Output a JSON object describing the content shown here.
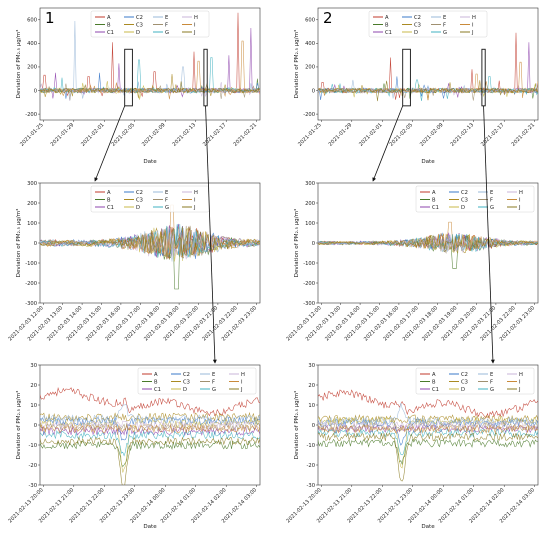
{
  "series_styles": [
    {
      "name": "A",
      "color": "#c0392b"
    },
    {
      "name": "B",
      "color": "#4a7a2a"
    },
    {
      "name": "C1",
      "color": "#8e44ad"
    },
    {
      "name": "C2",
      "color": "#3a78c9"
    },
    {
      "name": "C3",
      "color": "#aa8a22"
    },
    {
      "name": "D",
      "color": "#c8b84a"
    },
    {
      "name": "E",
      "color": "#9ab8d8"
    },
    {
      "name": "F",
      "color": "#a09070"
    },
    {
      "name": "G",
      "color": "#3fb0c0"
    },
    {
      "name": "H",
      "color": "#c9b4d8"
    },
    {
      "name": "I",
      "color": "#c98a3a"
    },
    {
      "name": "J",
      "color": "#8a7a20"
    }
  ],
  "chart_data": [
    {
      "id": "p1-top",
      "type": "line",
      "panel_label": "1",
      "xlabel": "Date",
      "ylabel": "Deviation of PM₂.₅ μg/m³",
      "ylim": [
        -250,
        700
      ],
      "yticks": [
        -200,
        0,
        200,
        400,
        600
      ],
      "xticks": [
        "2021-01-25",
        "2021-01-29",
        "2021-02-01",
        "2021-02-05",
        "2021-02-09",
        "2021-02-13",
        "2021-02-17",
        "2021-02-21"
      ],
      "legend": "top-center",
      "spikes": [
        {
          "s": "A",
          "x": 0.02,
          "y": 130
        },
        {
          "s": "C1",
          "x": 0.07,
          "y": 150
        },
        {
          "s": "G",
          "x": 0.1,
          "y": 110
        },
        {
          "s": "E",
          "x": 0.16,
          "y": 590
        },
        {
          "s": "A",
          "x": 0.22,
          "y": 120
        },
        {
          "s": "C2",
          "x": 0.27,
          "y": 150
        },
        {
          "s": "A",
          "x": 0.33,
          "y": 410
        },
        {
          "s": "C1",
          "x": 0.36,
          "y": 230
        },
        {
          "s": "G",
          "x": 0.45,
          "y": 260
        },
        {
          "s": "A",
          "x": 0.52,
          "y": 160
        },
        {
          "s": "C3",
          "x": 0.6,
          "y": 140
        },
        {
          "s": "E",
          "x": 0.65,
          "y": 200
        },
        {
          "s": "A",
          "x": 0.7,
          "y": 330
        },
        {
          "s": "I",
          "x": 0.72,
          "y": 250
        },
        {
          "s": "G",
          "x": 0.78,
          "y": 280
        },
        {
          "s": "C1",
          "x": 0.86,
          "y": 300
        },
        {
          "s": "A",
          "x": 0.9,
          "y": 660
        },
        {
          "s": "I",
          "x": 0.92,
          "y": 420
        },
        {
          "s": "C1",
          "x": 0.96,
          "y": 530
        },
        {
          "s": "B",
          "x": 0.99,
          "y": 100
        }
      ],
      "boxes": [
        [
          0.385,
          0.42
        ],
        [
          0.745,
          0.76
        ]
      ]
    },
    {
      "id": "p2-top",
      "type": "line",
      "panel_label": "2",
      "xlabel": "Date",
      "ylabel": "Deviation of PM₂.₅ μg/m³",
      "ylim": [
        -250,
        700
      ],
      "yticks": [
        -200,
        0,
        200,
        400,
        600
      ],
      "xticks": [
        "2021-01-25",
        "2021-01-29",
        "2021-02-01",
        "2021-02-05",
        "2021-02-09",
        "2021-02-13",
        "2021-02-17",
        "2021-02-21"
      ],
      "legend": "top-center",
      "spikes": [
        {
          "s": "A",
          "x": 0.02,
          "y": 70
        },
        {
          "s": "G",
          "x": 0.1,
          "y": 60
        },
        {
          "s": "E",
          "x": 0.16,
          "y": 90
        },
        {
          "s": "A",
          "x": 0.33,
          "y": 280
        },
        {
          "s": "C2",
          "x": 0.36,
          "y": 120
        },
        {
          "s": "G",
          "x": 0.45,
          "y": 90
        },
        {
          "s": "C3",
          "x": 0.6,
          "y": 70
        },
        {
          "s": "A",
          "x": 0.7,
          "y": 180
        },
        {
          "s": "I",
          "x": 0.72,
          "y": 140
        },
        {
          "s": "G",
          "x": 0.78,
          "y": 120
        },
        {
          "s": "A",
          "x": 0.9,
          "y": 490
        },
        {
          "s": "I",
          "x": 0.92,
          "y": 240
        },
        {
          "s": "C1",
          "x": 0.96,
          "y": 410
        },
        {
          "s": "B",
          "x": 0.99,
          "y": 60
        }
      ],
      "boxes": [
        [
          0.385,
          0.42
        ],
        [
          0.745,
          0.76
        ]
      ]
    },
    {
      "id": "p1-mid",
      "type": "line",
      "xlabel": "",
      "ylabel": "Deviation of PM₂.₅ μg/m³",
      "ylim": [
        -300,
        300
      ],
      "yticks": [
        -300,
        -200,
        -100,
        0,
        100,
        200,
        300
      ],
      "xticks": [
        "2021-02-03 12:00",
        "2021-02-03 13:00",
        "2021-02-03 14:00",
        "2021-02-03 15:00",
        "2021-02-03 16:00",
        "2021-02-03 17:00",
        "2021-02-03 18:00",
        "2021-02-03 19:00",
        "2021-02-03 20:00",
        "2021-02-03 21:00",
        "2021-02-03 22:00",
        "2021-02-03 23:00"
      ],
      "legend": "top-center",
      "amp": 1.0
    },
    {
      "id": "p2-mid",
      "type": "line",
      "xlabel": "",
      "ylabel": "Deviation of PM₂.₅ μg/m³",
      "ylim": [
        -300,
        300
      ],
      "yticks": [
        -300,
        -200,
        -100,
        0,
        100,
        200,
        300
      ],
      "xticks": [
        "2021-02-03 12:00",
        "2021-02-03 13:00",
        "2021-02-03 14:00",
        "2021-02-03 15:00",
        "2021-02-03 16:00",
        "2021-02-03 17:00",
        "2021-02-03 18:00",
        "2021-02-03 19:00",
        "2021-02-03 20:00",
        "2021-02-03 21:00",
        "2021-02-03 22:00",
        "2021-02-03 23:00"
      ],
      "legend": "top-right",
      "amp": 0.55
    },
    {
      "id": "p1-bot",
      "type": "line",
      "xlabel": "Date",
      "ylabel": "Deviation of PM₂.₅ μg/m³",
      "ylim": [
        -30,
        30
      ],
      "yticks": [
        -30,
        -20,
        -10,
        0,
        10,
        20,
        30
      ],
      "xticks": [
        "2021-02-13 20:00",
        "2021-02-13 21:00",
        "2021-02-13 22:00",
        "2021-02-13 23:00",
        "2021-02-14 00:00",
        "2021-02-14 01:00",
        "2021-02-14 02:00",
        "2021-02-14 03:00"
      ],
      "legend": "top-right",
      "levels": {
        "A": 9,
        "B": -10,
        "C1": -3,
        "C2": 2,
        "C3": 4,
        "D": 1,
        "E": 3,
        "F": -1,
        "G": -5,
        "H": 0,
        "I": -2,
        "J": -8
      }
    },
    {
      "id": "p2-bot",
      "type": "line",
      "xlabel": "Date",
      "ylabel": "Deviation of PM₂.₅ μg/m³",
      "ylim": [
        -30,
        30
      ],
      "yticks": [
        -30,
        -20,
        -10,
        0,
        10,
        20,
        30
      ],
      "xticks": [
        "2021-02-13 20:00",
        "2021-02-13 21:00",
        "2021-02-13 22:00",
        "2021-02-13 23:00",
        "2021-02-14 00:00",
        "2021-02-14 01:00",
        "2021-02-14 02:00",
        "2021-02-14 03:00"
      ],
      "legend": "top-right",
      "levels": {
        "A": 8,
        "B": -9,
        "C1": -2,
        "C2": 1,
        "C3": 3,
        "D": 2,
        "E": 2,
        "F": -1,
        "G": -4,
        "H": 0,
        "I": -2,
        "J": -6
      }
    }
  ]
}
